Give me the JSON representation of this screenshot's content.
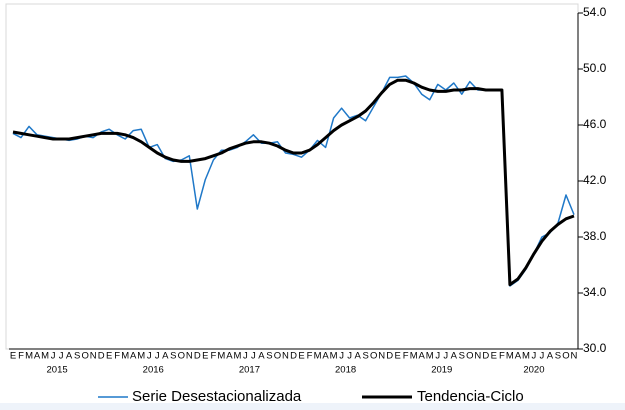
{
  "chart_data": {
    "type": "line",
    "categories": [
      "E",
      "F",
      "M",
      "A",
      "M",
      "J",
      "J",
      "A",
      "S",
      "O",
      "N",
      "D",
      "E",
      "F",
      "M",
      "A",
      "M",
      "J",
      "J",
      "A",
      "S",
      "O",
      "N",
      "D",
      "E",
      "F",
      "M",
      "A",
      "M",
      "J",
      "J",
      "A",
      "S",
      "O",
      "N",
      "D",
      "E",
      "F",
      "M",
      "A",
      "M",
      "J",
      "J",
      "A",
      "S",
      "O",
      "N",
      "D",
      "E",
      "F",
      "M",
      "A",
      "M",
      "J",
      "J",
      "A",
      "S",
      "O",
      "N",
      "D",
      "E",
      "F",
      "M",
      "A",
      "M",
      "J",
      "J",
      "A",
      "S",
      "O",
      "N"
    ],
    "year_labels": [
      "2015",
      "2016",
      "2017",
      "2018",
      "2019",
      "2020"
    ],
    "series": [
      {
        "name": "Serie Desestacionalizada",
        "color": "#1f78c8",
        "values": [
          45.4,
          45.1,
          45.9,
          45.3,
          45.2,
          45.1,
          45.0,
          44.9,
          45.0,
          45.2,
          45.1,
          45.5,
          45.7,
          45.3,
          45.0,
          45.6,
          45.7,
          44.4,
          44.6,
          43.6,
          43.4,
          43.5,
          43.8,
          40.0,
          42.1,
          43.5,
          44.2,
          44.2,
          44.4,
          44.8,
          45.3,
          44.7,
          44.7,
          44.8,
          44.0,
          43.9,
          43.7,
          44.2,
          44.9,
          44.4,
          46.5,
          47.2,
          46.5,
          46.7,
          46.3,
          47.3,
          48.3,
          49.4,
          49.4,
          49.5,
          49.0,
          48.2,
          47.8,
          48.9,
          48.5,
          49.0,
          48.2,
          49.1,
          48.5,
          48.5,
          48.5,
          48.5,
          34.5,
          34.9,
          35.7,
          36.8,
          38.0,
          38.3,
          39.0,
          41.0,
          39.6
        ]
      },
      {
        "name": "Tendencia-Ciclo",
        "color": "#000000",
        "values": [
          45.5,
          45.4,
          45.3,
          45.2,
          45.1,
          45.0,
          45.0,
          45.0,
          45.1,
          45.2,
          45.3,
          45.4,
          45.4,
          45.4,
          45.3,
          45.1,
          44.8,
          44.4,
          44.0,
          43.7,
          43.5,
          43.4,
          43.4,
          43.5,
          43.6,
          43.8,
          44.0,
          44.3,
          44.5,
          44.7,
          44.8,
          44.8,
          44.7,
          44.5,
          44.2,
          44.0,
          44.0,
          44.2,
          44.6,
          45.1,
          45.6,
          46.0,
          46.3,
          46.6,
          47.0,
          47.6,
          48.3,
          48.9,
          49.2,
          49.2,
          49.0,
          48.7,
          48.5,
          48.4,
          48.4,
          48.5,
          48.5,
          48.6,
          48.6,
          48.5,
          48.5,
          48.5,
          34.6,
          35.0,
          35.8,
          36.8,
          37.7,
          38.4,
          38.9,
          39.3,
          39.5
        ]
      }
    ],
    "ylim": [
      30,
      54
    ],
    "yticks": [
      {
        "value": 30,
        "label": "30.0"
      },
      {
        "value": 34,
        "label": "34.0"
      },
      {
        "value": 38,
        "label": "38.0"
      },
      {
        "value": 42,
        "label": "42.0"
      },
      {
        "value": 46,
        "label": "46.0"
      },
      {
        "value": 50,
        "label": "50.0"
      },
      {
        "value": 54,
        "label": "54.0"
      }
    ],
    "y_axis_side": "right"
  }
}
